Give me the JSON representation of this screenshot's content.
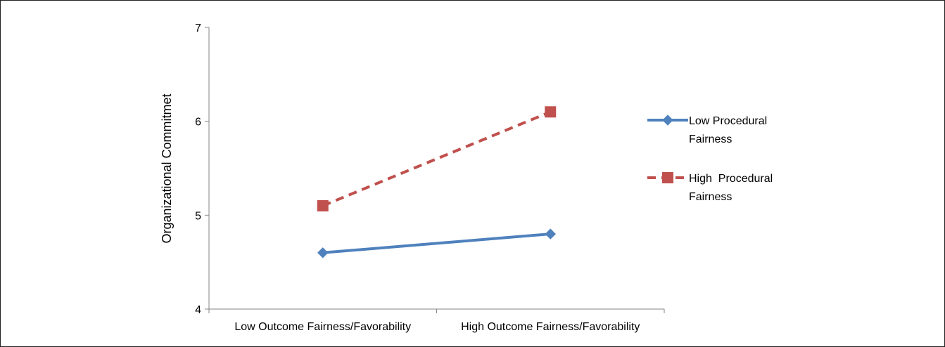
{
  "chart_data": {
    "type": "line",
    "title": "",
    "xlabel": "",
    "ylabel": "Organizational Commitmet",
    "ylim": [
      4,
      7
    ],
    "yticks": [
      "4",
      "5",
      "6",
      "7"
    ],
    "categories": [
      "Low Outcome Fairness/Favorability",
      "High Outcome Fairness/Favorability"
    ],
    "grid": false,
    "legend_position": "right",
    "series": [
      {
        "name": "Low Procedural Fairness",
        "name_lines": [
          "Low Procedural",
          "Fairness"
        ],
        "values": [
          4.6,
          4.8
        ],
        "color": "#4f81bd",
        "marker": "diamond",
        "dash": "solid"
      },
      {
        "name": "High  Procedural Fairness",
        "name_lines": [
          "High  Procedural",
          "Fairness"
        ],
        "values": [
          5.1,
          6.1
        ],
        "color": "#c0504d",
        "marker": "square",
        "dash": "dashed"
      }
    ]
  }
}
